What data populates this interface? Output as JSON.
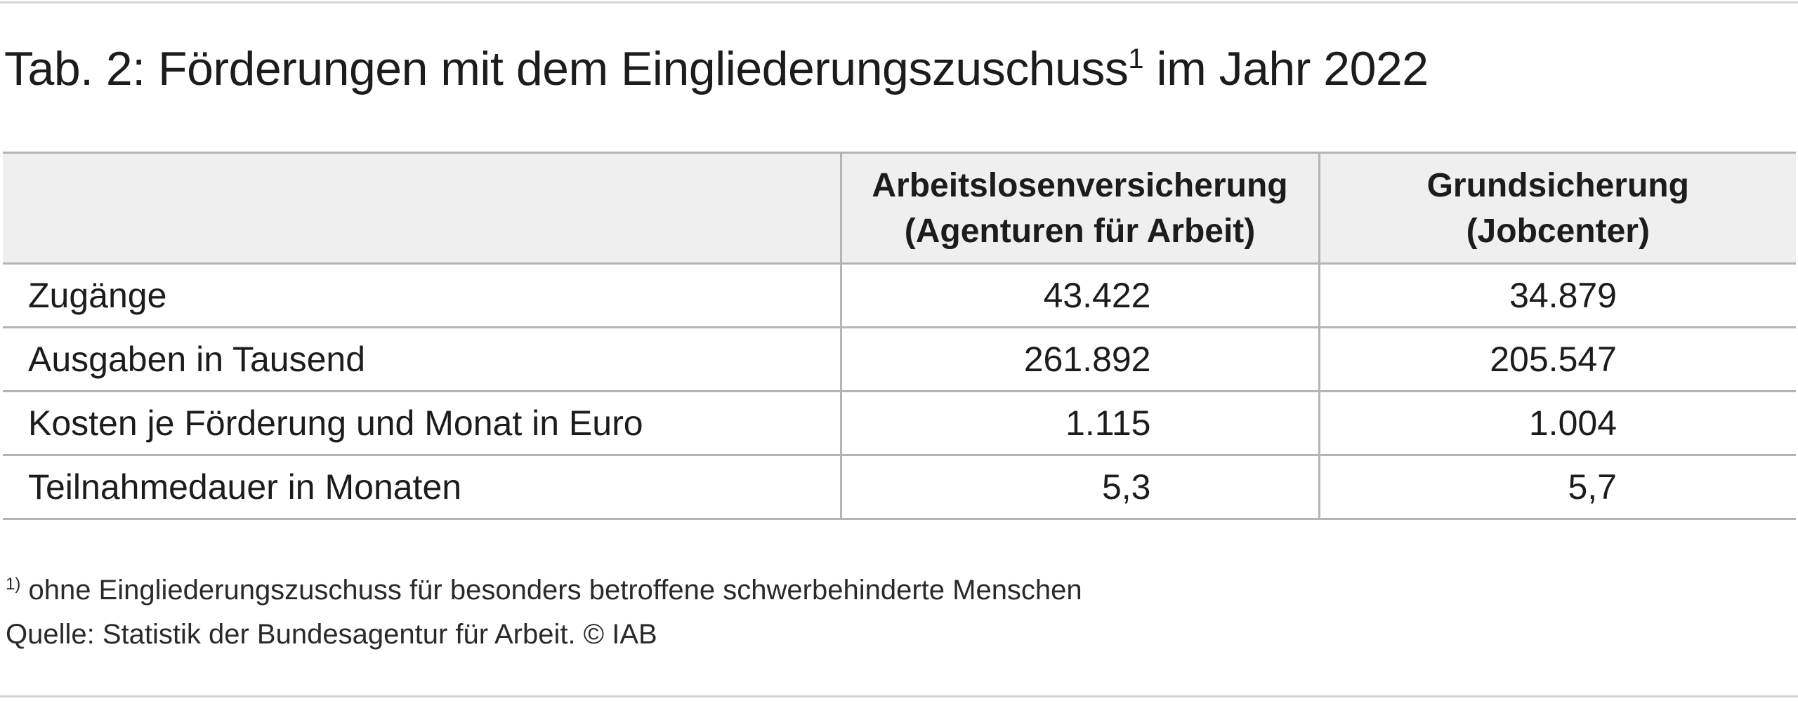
{
  "title": {
    "prefix": "Tab. 2: Förderungen mit dem Eingliederungszuschuss",
    "footnote_marker": "1",
    "suffix": " im Jahr 2022"
  },
  "table": {
    "headers": [
      {
        "line1": "",
        "line2": ""
      },
      {
        "line1": "Arbeitslosenversicherung",
        "line2": "(Agenturen für Arbeit)"
      },
      {
        "line1": "Grundsicherung",
        "line2": "(Jobcenter)"
      }
    ],
    "rows": [
      {
        "label": "Zugänge",
        "alv": "43.422",
        "gs": "34.879"
      },
      {
        "label": "Ausgaben in Tausend",
        "alv": "261.892",
        "gs": "205.547"
      },
      {
        "label": "Kosten je Förderung und Monat in Euro",
        "alv": "1.115",
        "gs": "1.004"
      },
      {
        "label": "Teilnahmedauer in Monaten",
        "alv": "5,3",
        "gs": "5,7"
      }
    ]
  },
  "footnote": {
    "marker": "1)",
    "text": " ohne Eingliederungszuschuss für besonders betroffene schwerbehinderte Menschen"
  },
  "source": "Quelle: Statistik der Bundesagentur für Arbeit.  © IAB",
  "colors": {
    "header_background": "#efefef",
    "grid_lines": "#b4b4b4",
    "text": "#1c1c1c"
  }
}
